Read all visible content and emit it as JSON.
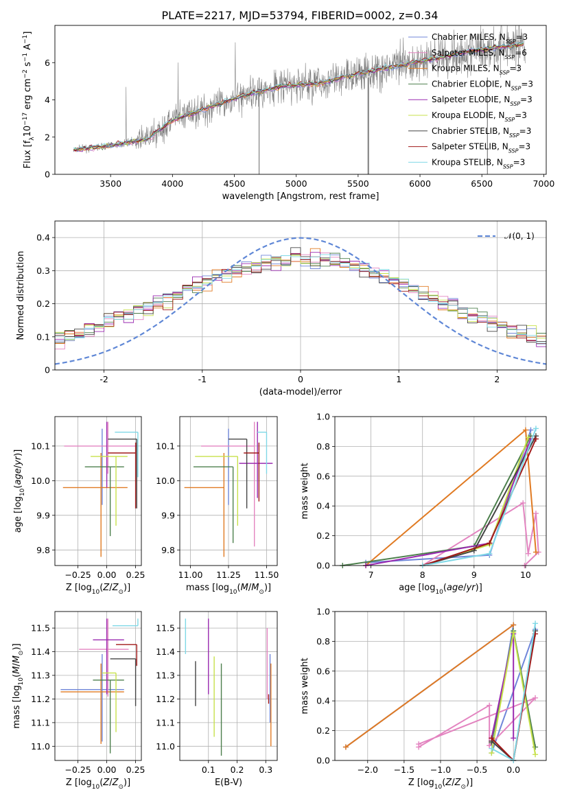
{
  "figure": {
    "title": "PLATE=2217, MJD=53794, FIBERID=0002, z=0.34"
  },
  "models": [
    {
      "label": "Chabrier MILES, N_SSP=3",
      "imf": "Chabrier",
      "lib": "MILES",
      "nssp": 3,
      "color": "#6f86d9"
    },
    {
      "label": "Salpeter MILES, N_SSP=6",
      "imf": "Salpeter",
      "lib": "MILES",
      "nssp": 6,
      "color": "#e384c0"
    },
    {
      "label": "Kroupa MILES, N_SSP=3",
      "imf": "Kroupa",
      "lib": "MILES",
      "nssp": 3,
      "color": "#e07a22"
    },
    {
      "label": "Chabrier ELODIE, N_SSP=3",
      "imf": "Chabrier",
      "lib": "ELODIE",
      "nssp": 3,
      "color": "#4c7f4c"
    },
    {
      "label": "Salpeter ELODIE, N_SSP=3",
      "imf": "Salpeter",
      "lib": "ELODIE",
      "nssp": 3,
      "color": "#9a2ab0"
    },
    {
      "label": "Kroupa ELODIE, N_SSP=3",
      "imf": "Kroupa",
      "lib": "ELODIE",
      "nssp": 3,
      "color": "#c7e14a"
    },
    {
      "label": "Chabrier STELIB, N_SSP=3",
      "imf": "Chabrier",
      "lib": "STELIB",
      "nssp": 3,
      "color": "#444444"
    },
    {
      "label": "Salpeter STELIB, N_SSP=3",
      "imf": "Salpeter",
      "lib": "STELIB",
      "nssp": 3,
      "color": "#a01818"
    },
    {
      "label": "Kroupa STELIB, N_SSP=3",
      "imf": "Kroupa",
      "lib": "STELIB",
      "nssp": 3,
      "color": "#7fd8e6"
    }
  ],
  "chart_data": [
    {
      "type": "line",
      "name": "spectrum",
      "xlabel": "wavelength [Angstrom, rest frame]",
      "ylabel": "Flux [f_λ 10^-17 erg cm^-2 s^-1 A^-1]",
      "xlim": [
        3050,
        7020
      ],
      "ylim": [
        0,
        8
      ],
      "xticks": [
        3500,
        4000,
        4500,
        5000,
        5500,
        6000,
        6500,
        7000
      ],
      "yticks": [
        0,
        2,
        4,
        6
      ],
      "data_color": "#808080",
      "data_range": [
        3200,
        6850
      ],
      "continuum_x": [
        3200,
        3500,
        3800,
        4000,
        4300,
        4600,
        4900,
        5200,
        5500,
        5800,
        6100,
        6400,
        6700,
        6850
      ],
      "continuum_y": [
        1.3,
        1.55,
        1.9,
        2.9,
        3.6,
        4.3,
        4.75,
        4.9,
        5.4,
        5.8,
        6.2,
        6.6,
        6.9,
        7.0
      ]
    },
    {
      "type": "line",
      "name": "residual-distribution",
      "xlabel": "(data-model)/error",
      "ylabel": "Normed distribution",
      "xlim": [
        -2.5,
        2.5
      ],
      "ylim": [
        0,
        0.45
      ],
      "xticks": [
        -2,
        -1,
        0,
        1,
        2
      ],
      "yticks": [
        0.0,
        0.1,
        0.2,
        0.3,
        0.4
      ],
      "reference_label": "𝒩(0, 1)",
      "reference": {
        "mean": 0,
        "sigma": 1
      },
      "reference_color": "#5f87d6",
      "grid": true,
      "legend": "top-right"
    },
    {
      "type": "scatter",
      "name": "age-vs-Z",
      "xlabel": "Z [log10(Z/Z⊙)]",
      "ylabel": "age  [log10(age/yr)]",
      "xlim": [
        -0.45,
        0.3
      ],
      "ylim": [
        9.755,
        10.185
      ],
      "xticks": [
        -0.25,
        0.0,
        0.25
      ],
      "xticklabels": [
        "−0.25",
        "0.00",
        "0.25"
      ],
      "yticks": [
        9.8,
        9.9,
        10.0,
        10.1
      ],
      "yticklabels": [
        "9.8",
        "9.9",
        "10.0",
        "10.1"
      ],
      "grid": true,
      "points": [
        {
          "model": 0,
          "x": -0.04,
          "y": 10.06,
          "xerr": [
            0.0,
            0.0
          ],
          "yerr": [
            0.13,
            0.09
          ]
        },
        {
          "model": 1,
          "x": 0.01,
          "y": 10.1,
          "xerr": [
            0.38,
            0.25
          ],
          "yerr": [
            0.08,
            0.07
          ]
        },
        {
          "model": 2,
          "x": -0.05,
          "y": 9.98,
          "xerr": [
            0.33,
            0.23
          ],
          "yerr": [
            0.2,
            0.1
          ]
        },
        {
          "model": 3,
          "x": 0.03,
          "y": 10.04,
          "xerr": [
            0.22,
            0.12
          ],
          "yerr": [
            0.2,
            0.0
          ]
        },
        {
          "model": 4,
          "x": 0.0,
          "y": 10.05,
          "xerr": [
            0.0,
            0.0
          ],
          "yerr": [
            0.07,
            0.12
          ]
        },
        {
          "model": 5,
          "x": 0.08,
          "y": 10.07,
          "xerr": [
            0.22,
            0.1
          ],
          "yerr": [
            0.2,
            0.0
          ]
        },
        {
          "model": 6,
          "x": 0.26,
          "y": 10.12,
          "xerr": [
            0.25,
            0.0
          ],
          "yerr": [
            0.2,
            0.0
          ]
        },
        {
          "model": 7,
          "x": 0.25,
          "y": 10.08,
          "xerr": [
            0.24,
            0.0
          ],
          "yerr": [
            0.16,
            0.03
          ]
        },
        {
          "model": 8,
          "x": 0.27,
          "y": 10.14,
          "xerr": [
            0.2,
            0.0
          ],
          "yerr": [
            0.13,
            0.0
          ]
        }
      ]
    },
    {
      "type": "scatter",
      "name": "age-vs-mass",
      "xlabel": "mass [log10(M/M⊙)]",
      "xlim": [
        10.93,
        11.57
      ],
      "ylim": [
        9.755,
        10.185
      ],
      "xticks": [
        11.0,
        11.25,
        11.5
      ],
      "xticklabels": [
        "11.00",
        "11.25",
        "11.50"
      ],
      "yticks": [
        9.8,
        9.9,
        10.0,
        10.1
      ],
      "yticklabels": [
        "9.8",
        "9.9",
        "10.0",
        "10.1"
      ],
      "grid": true,
      "points": [
        {
          "model": 0,
          "x": 11.25,
          "y": 10.06,
          "xerr": [
            0.0,
            0.0
          ],
          "yerr": [
            0.13,
            0.09
          ]
        },
        {
          "model": 1,
          "x": 11.42,
          "y": 10.1,
          "xerr": [
            0.35,
            0.0
          ],
          "yerr": [
            0.29,
            0.07
          ]
        },
        {
          "model": 2,
          "x": 11.22,
          "y": 9.98,
          "xerr": [
            0.26,
            0.0
          ],
          "yerr": [
            0.2,
            0.1
          ]
        },
        {
          "model": 3,
          "x": 11.28,
          "y": 10.04,
          "xerr": [
            0.26,
            0.0
          ],
          "yerr": [
            0.22,
            0.0
          ]
        },
        {
          "model": 4,
          "x": 11.44,
          "y": 10.05,
          "xerr": [
            0.12,
            0.1
          ],
          "yerr": [
            0.1,
            0.12
          ]
        },
        {
          "model": 5,
          "x": 11.31,
          "y": 10.07,
          "xerr": [
            0.28,
            0.0
          ],
          "yerr": [
            0.2,
            0.0
          ]
        },
        {
          "model": 6,
          "x": 11.37,
          "y": 10.12,
          "xerr": [
            0.12,
            0.0
          ],
          "yerr": [
            0.2,
            0.0
          ]
        },
        {
          "model": 7,
          "x": 11.45,
          "y": 10.08,
          "xerr": [
            0.1,
            0.0
          ],
          "yerr": [
            0.14,
            0.03
          ]
        },
        {
          "model": 8,
          "x": 11.5,
          "y": 10.14,
          "xerr": [
            0.06,
            0.0
          ],
          "yerr": [
            0.12,
            0.0
          ]
        }
      ]
    },
    {
      "type": "line",
      "name": "mass-weight-vs-age",
      "xlabel": "age  [log10(age/yr)]",
      "ylabel": "mass weight",
      "xlim": [
        6.3,
        10.4
      ],
      "ylim": [
        0,
        1
      ],
      "xticks": [
        7,
        8,
        9,
        10
      ],
      "yticks": [
        0.0,
        0.2,
        0.4,
        0.6,
        0.8,
        1.0
      ],
      "yticklabels": [
        "0.0",
        "0.2",
        "0.4",
        "0.6",
        "0.8",
        "1.0"
      ],
      "grid": true,
      "series": [
        {
          "model": 0,
          "x": [
            6.9,
            9.3,
            10.1
          ],
          "y": [
            0.02,
            0.07,
            0.91
          ]
        },
        {
          "model": 1,
          "x": [
            8.0,
            9.95,
            10.05,
            10.2,
            10.25,
            9.98
          ],
          "y": [
            0.0,
            0.42,
            0.08,
            0.35,
            0.09,
            0.0
          ]
        },
        {
          "model": 2,
          "x": [
            6.9,
            10.0,
            10.2
          ],
          "y": [
            0.0,
            0.91,
            0.09
          ]
        },
        {
          "model": 3,
          "x": [
            6.45,
            9.0,
            10.1
          ],
          "y": [
            0.0,
            0.13,
            0.87
          ]
        },
        {
          "model": 4,
          "x": [
            6.9,
            9.3,
            10.1
          ],
          "y": [
            0.0,
            0.15,
            0.85
          ]
        },
        {
          "model": 5,
          "x": [
            8.0,
            9.3,
            10.05
          ],
          "y": [
            0.0,
            0.14,
            0.86
          ]
        },
        {
          "model": 6,
          "x": [
            8.0,
            9.0,
            10.2
          ],
          "y": [
            0.0,
            0.1,
            0.87
          ]
        },
        {
          "model": 7,
          "x": [
            8.0,
            9.3,
            10.2
          ],
          "y": [
            0.0,
            0.15,
            0.85
          ]
        },
        {
          "model": 8,
          "x": [
            8.0,
            9.3,
            10.2
          ],
          "y": [
            0.0,
            0.08,
            0.92
          ]
        }
      ]
    },
    {
      "type": "scatter",
      "name": "mass-vs-Z",
      "xlabel": "Z [log10(Z/Z⊙)]",
      "ylabel": "mass [log10(M/M⊙)]",
      "xlim": [
        -0.45,
        0.3
      ],
      "ylim": [
        10.94,
        11.57
      ],
      "xticks": [
        -0.25,
        0.0,
        0.25
      ],
      "xticklabels": [
        "−0.25",
        "0.00",
        "0.25"
      ],
      "yticks": [
        11.0,
        11.1,
        11.2,
        11.3,
        11.4,
        11.5
      ],
      "yticklabels": [
        "11.0",
        "11.1",
        "11.2",
        "11.3",
        "11.4",
        "11.5"
      ],
      "grid": true,
      "points": [
        {
          "model": 0,
          "x": -0.04,
          "y": 11.24,
          "xerr": [
            0.36,
            0.19
          ],
          "yerr": [
            0.22,
            0.15
          ]
        },
        {
          "model": 1,
          "x": 0.01,
          "y": 11.41,
          "xerr": [
            0.25,
            0.18
          ],
          "yerr": [
            0.2,
            0.13
          ]
        },
        {
          "model": 2,
          "x": -0.05,
          "y": 11.23,
          "xerr": [
            0.35,
            0.2
          ],
          "yerr": [
            0.22,
            0.12
          ]
        },
        {
          "model": 3,
          "x": 0.03,
          "y": 11.28,
          "xerr": [
            0.15,
            0.12
          ],
          "yerr": [
            0.31,
            0.0
          ]
        },
        {
          "model": 4,
          "x": 0.0,
          "y": 11.45,
          "xerr": [
            0.12,
            0.15
          ],
          "yerr": [
            0.23,
            0.09
          ]
        },
        {
          "model": 5,
          "x": 0.08,
          "y": 11.31,
          "xerr": [
            0.12,
            0.0
          ],
          "yerr": [
            0.25,
            0.0
          ]
        },
        {
          "model": 6,
          "x": 0.25,
          "y": 11.37,
          "xerr": [
            0.22,
            0.0
          ],
          "yerr": [
            0.2,
            0.0
          ]
        },
        {
          "model": 7,
          "x": 0.26,
          "y": 11.43,
          "xerr": [
            0.18,
            0.0
          ],
          "yerr": [
            0.09,
            0.0
          ]
        },
        {
          "model": 8,
          "x": 0.27,
          "y": 11.51,
          "xerr": [
            0.22,
            0.0
          ],
          "yerr": [
            0.0,
            0.03
          ]
        }
      ]
    },
    {
      "type": "scatter",
      "name": "mass-vs-EBV",
      "xlabel": "E(B-V)",
      "xlim": [
        0.0,
        0.34
      ],
      "ylim": [
        10.94,
        11.57
      ],
      "xticks": [
        0.1,
        0.2,
        0.3
      ],
      "xticklabels": [
        "0.1",
        "0.2",
        "0.3"
      ],
      "yticks": [
        11.0,
        11.1,
        11.2,
        11.3,
        11.4,
        11.5
      ],
      "yticklabels": [
        "11.0",
        "11.1",
        "11.2",
        "11.3",
        "11.4",
        "11.5"
      ],
      "grid": true,
      "points": [
        {
          "model": 0,
          "x": 0.315,
          "y": 11.2,
          "yerr": [
            0.1,
            0.19
          ]
        },
        {
          "model": 1,
          "x": 0.305,
          "y": 11.3,
          "yerr": [
            0.1,
            0.2
          ]
        },
        {
          "model": 2,
          "x": 0.318,
          "y": 11.2,
          "yerr": [
            0.2,
            0.15
          ]
        },
        {
          "model": 3,
          "x": 0.145,
          "y": 11.16,
          "yerr": [
            0.2,
            0.19
          ]
        },
        {
          "model": 4,
          "x": 0.1,
          "y": 11.38,
          "yerr": [
            0.16,
            0.16
          ]
        },
        {
          "model": 5,
          "x": 0.12,
          "y": 11.26,
          "yerr": [
            0.22,
            0.12
          ]
        },
        {
          "model": 6,
          "x": 0.055,
          "y": 11.26,
          "yerr": [
            0.09,
            0.1
          ]
        },
        {
          "model": 7,
          "x": 0.31,
          "y": 11.2,
          "yerr": [
            0.02,
            0.02
          ]
        },
        {
          "model": 8,
          "x": 0.02,
          "y": 11.47,
          "yerr": [
            0.08,
            0.07
          ]
        }
      ]
    },
    {
      "type": "line",
      "name": "mass-weight-vs-Z",
      "xlabel": "Z [log10(Z/Z⊙)]",
      "ylabel": "mass weight",
      "xlim": [
        -2.45,
        0.45
      ],
      "ylim": [
        0,
        1
      ],
      "xticks": [
        -2.0,
        -1.5,
        -1.0,
        -0.5,
        0.0
      ],
      "xticklabels": [
        "−2.0",
        "−1.5",
        "−1.0",
        "−0.5",
        "0.0"
      ],
      "yticks": [
        0.0,
        0.2,
        0.4,
        0.6,
        0.8,
        1.0
      ],
      "yticklabels": [
        "0.0",
        "0.2",
        "0.4",
        "0.6",
        "0.8",
        "1.0"
      ],
      "grid": true,
      "series": [
        {
          "model": 0,
          "x": [
            -2.3,
            0.0,
            -0.3,
            0.3
          ],
          "y": [
            0.09,
            0.91,
            0.05,
            0.88
          ]
        },
        {
          "model": 1,
          "x": [
            -1.3,
            -0.33,
            -0.33,
            0.3,
            -1.3
          ],
          "y": [
            0.09,
            0.37,
            0.1,
            0.42,
            0.11
          ]
        },
        {
          "model": 2,
          "x": [
            -2.3,
            0.0
          ],
          "y": [
            0.09,
            0.91
          ]
        },
        {
          "model": 3,
          "x": [
            -0.3,
            0.0,
            0.3
          ],
          "y": [
            0.12,
            0.87,
            0.09
          ]
        },
        {
          "model": 4,
          "x": [
            -0.3,
            0.0,
            0.0
          ],
          "y": [
            0.15,
            0.85,
            0.15
          ]
        },
        {
          "model": 5,
          "x": [
            -0.3,
            0.0,
            0.3
          ],
          "y": [
            0.05,
            0.86,
            0.04
          ]
        },
        {
          "model": 6,
          "x": [
            -0.3,
            0.0,
            0.3
          ],
          "y": [
            0.13,
            0.0,
            0.87
          ]
        },
        {
          "model": 7,
          "x": [
            -0.3,
            0.0,
            0.3
          ],
          "y": [
            0.15,
            0.0,
            0.85
          ]
        },
        {
          "model": 8,
          "x": [
            -0.3,
            0.0,
            0.3
          ],
          "y": [
            0.08,
            0.0,
            0.92
          ]
        }
      ]
    }
  ]
}
